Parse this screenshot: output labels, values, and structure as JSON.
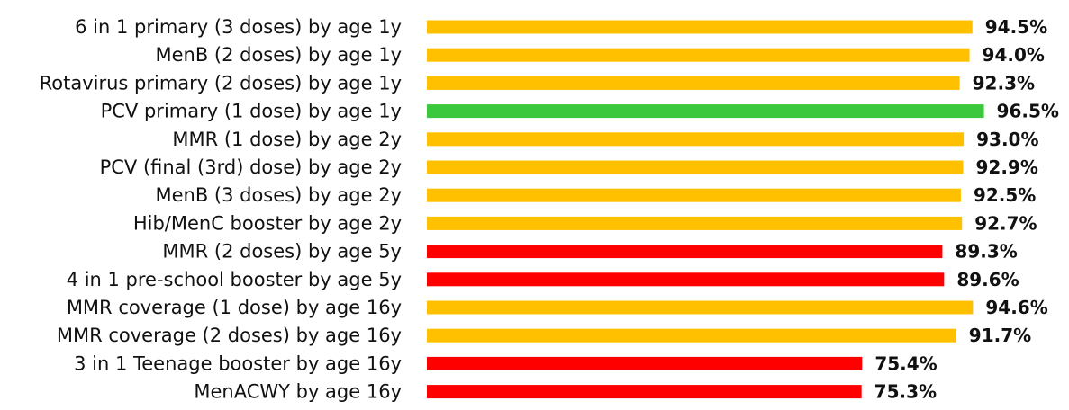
{
  "chart_data": {
    "type": "bar",
    "orientation": "horizontal",
    "categories": [
      "6 in 1 primary (3 doses) by age 1y",
      "MenB (2 doses) by age 1y",
      "Rotavirus primary (2 doses) by age 1y",
      "PCV primary (1 dose) by age 1y",
      "MMR (1 dose) by age 2y",
      "PCV (final (3rd) dose) by age 2y",
      "MenB (3 doses) by age 2y",
      "Hib/MenC booster by age 2y",
      "MMR (2 doses) by age 5y",
      "4 in 1 pre-school booster by age 5y",
      "MMR coverage (1 dose) by age 16y",
      "MMR coverage (2 doses) by age 16y",
      "3 in 1 Teenage booster by age 16y",
      "MenACWY by age 16y"
    ],
    "values": [
      94.5,
      94.0,
      92.3,
      96.5,
      93.0,
      92.9,
      92.5,
      92.7,
      89.3,
      89.6,
      94.6,
      91.7,
      75.4,
      75.3
    ],
    "value_labels": [
      "94.5%",
      "94.0%",
      "92.3%",
      "96.5%",
      "93.0%",
      "92.9%",
      "92.5%",
      "92.7%",
      "89.3%",
      "89.6%",
      "94.6%",
      "91.7%",
      "75.4%",
      "75.3%"
    ],
    "bar_colors": [
      "#FFC000",
      "#FFC000",
      "#FFC000",
      "#3CC83C",
      "#FFC000",
      "#FFC000",
      "#FFC000",
      "#FFC000",
      "#FF0000",
      "#FF0000",
      "#FFC000",
      "#FFC000",
      "#FF0000",
      "#FF0000"
    ],
    "xlim": [
      0,
      100
    ],
    "grid": false,
    "legend": "none"
  }
}
